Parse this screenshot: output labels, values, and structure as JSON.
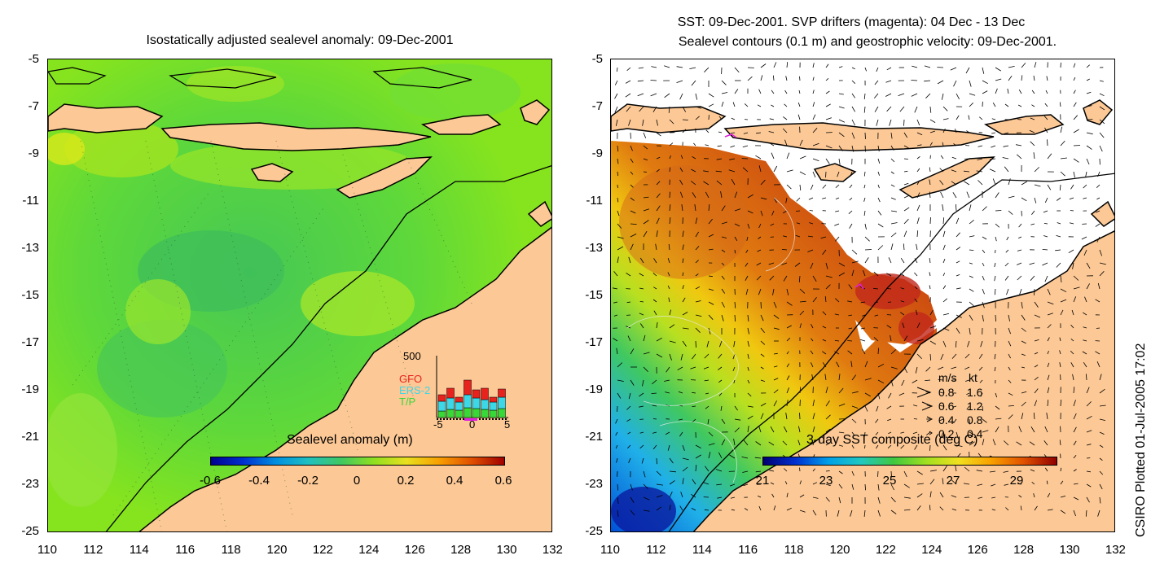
{
  "left_panel": {
    "title": "Isostatically adjusted sealevel anomaly: 09-Dec-2001",
    "colorbar_title": "Sealevel anomaly (m)",
    "colorbar_ticks": [
      "-0.6",
      "-0.4",
      "-0.2",
      "0",
      "0.2",
      "0.4",
      "0.6"
    ],
    "inset": {
      "y_max_label": "500",
      "legend": [
        {
          "name": "GFO",
          "color": "#e8231e"
        },
        {
          "name": "ERS-2",
          "color": "#3cd8e8"
        },
        {
          "name": "T/P",
          "color": "#38d838"
        }
      ],
      "x_ticks": [
        "-5",
        "0",
        "5"
      ]
    }
  },
  "right_panel": {
    "title_line1": "SST: 09-Dec-2001. SVP drifters (magenta): 04 Dec - 13 Dec",
    "title_line2": "Sealevel contours (0.1 m) and geostrophic velocity: 09-Dec-2001.",
    "colorbar_title": "3-day SST composite (deg C)",
    "colorbar_ticks": [
      "21",
      "23",
      "25",
      "27",
      "29"
    ],
    "velocity_legend": {
      "header_ms": "m/s",
      "header_kt": "kt",
      "rows": [
        {
          "ms": "0.8",
          "kt": "1.6"
        },
        {
          "ms": "0.6",
          "kt": "1.2"
        },
        {
          "ms": "0.4",
          "kt": "0.8"
        },
        {
          "ms": "0.2",
          "kt": "0.4"
        }
      ]
    }
  },
  "y_ticks": [
    "-5",
    "-7",
    "-9",
    "-11",
    "-13",
    "-15",
    "-17",
    "-19",
    "-21",
    "-23",
    "-25"
  ],
  "x_ticks": [
    "110",
    "112",
    "114",
    "116",
    "118",
    "120",
    "122",
    "124",
    "126",
    "128",
    "130",
    "132"
  ],
  "stamp": "CSIRO Plotted 01-Jul-2005 17:02",
  "colors": {
    "land": "#fcc895",
    "ocean_green": "#7ee020",
    "ocean_teal": "#3fc83e"
  }
}
